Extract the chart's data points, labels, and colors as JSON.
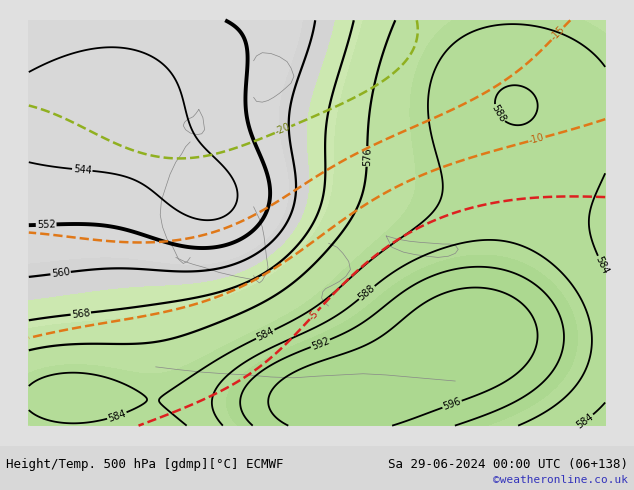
{
  "title_left": "Height/Temp. 500 hPa [gdmp][°C] ECMWF",
  "title_right": "Sa 29-06-2024 00:00 UTC (06+138)",
  "watermark": "©weatheronline.co.uk",
  "bg_color": "#e0e0e0",
  "fig_width": 6.34,
  "fig_height": 4.9,
  "dpi": 100,
  "title_font_size": 9,
  "watermark_color": "#3333bb",
  "watermark_font_size": 8,
  "land_green": "#c8e8a8",
  "ocean_gray": "#d8d8d8",
  "height_levels": [
    544,
    552,
    560,
    568,
    576,
    584,
    588,
    592,
    596
  ],
  "temp_levels_orange": [
    -15,
    -10
  ],
  "temp_levels_yg": [
    -20
  ],
  "temp_levels_red": [
    -5
  ]
}
